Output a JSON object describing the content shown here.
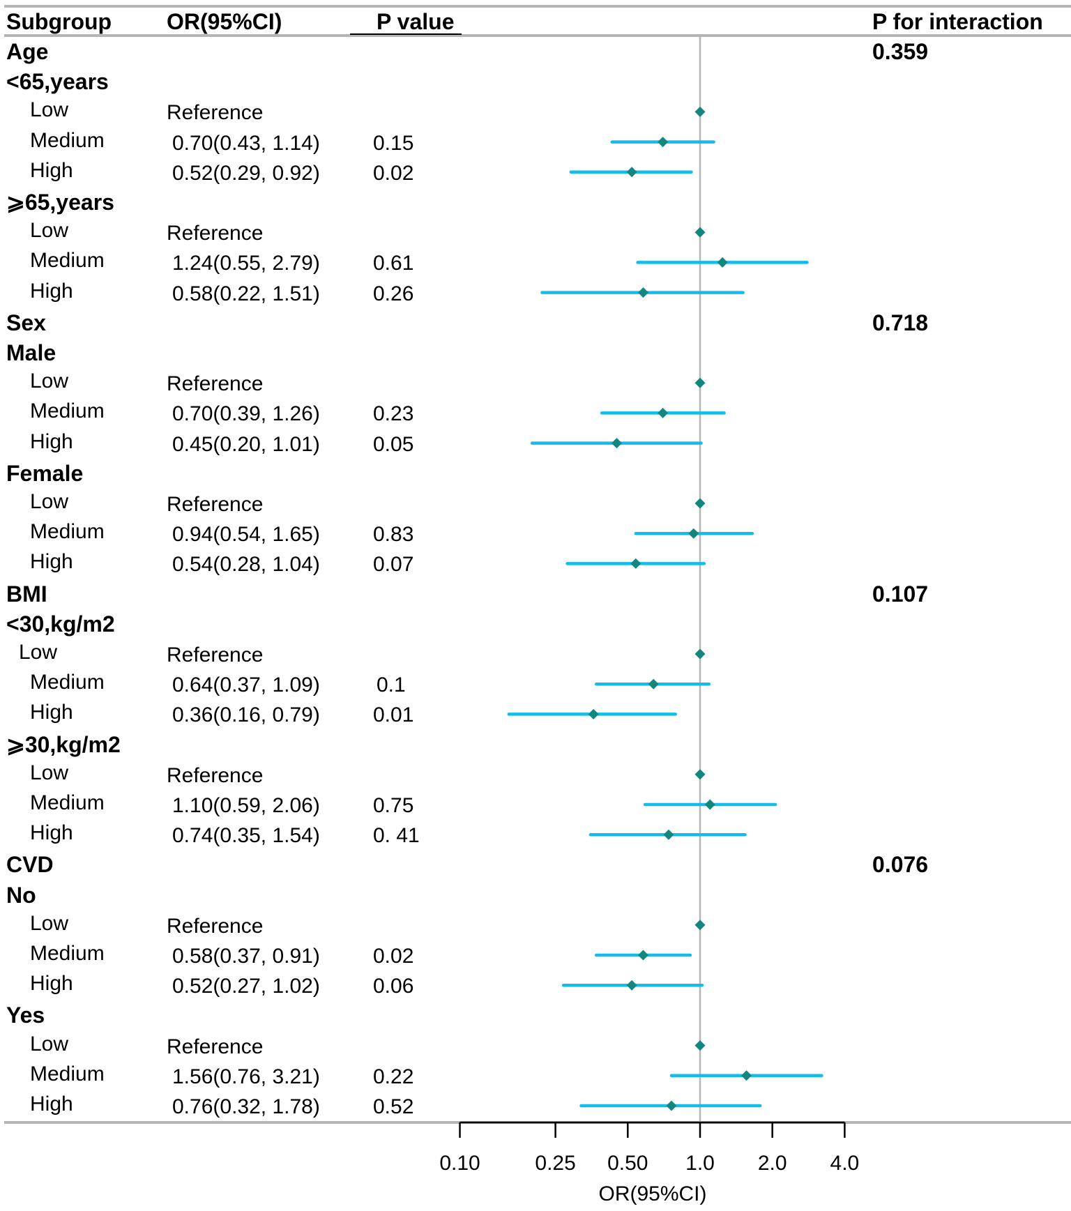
{
  "header": {
    "subgroup": "Subgroup",
    "or": "OR(95%CI)",
    "p": "P value",
    "p_interaction": "P for interaction"
  },
  "chart_data": {
    "type": "forest",
    "xlabel": "OR(95%CI)",
    "xscale": "log",
    "xlim": [
      0.1,
      4.0
    ],
    "ticks": [
      0.1,
      0.25,
      0.5,
      1.0,
      2.0,
      4.0
    ],
    "tick_labels": [
      "0.10",
      "0.25",
      "0.50",
      "1.0",
      "2.0",
      "4.0"
    ],
    "reference_line": 1.0,
    "colors": {
      "ci": "#12bdec",
      "point": "#12877f",
      "ref": "#b5b5b5"
    },
    "rows": [
      {
        "label": "Age",
        "kind": "group",
        "pint": "0.359"
      },
      {
        "label": "<65,years",
        "kind": "sub"
      },
      {
        "label": "Low",
        "kind": "item",
        "or_text": "Reference",
        "or": 1.0
      },
      {
        "label": "Medium",
        "kind": "item",
        "or_text": "0.70(0.43, 1.14)",
        "p": "0.15",
        "or": 0.7,
        "lo": 0.43,
        "hi": 1.14
      },
      {
        "label": "High",
        "kind": "item",
        "or_text": "0.52(0.29, 0.92)",
        "p": "0.02",
        "or": 0.52,
        "lo": 0.29,
        "hi": 0.92
      },
      {
        "label": "⩾65,years",
        "kind": "sub"
      },
      {
        "label": "Low",
        "kind": "item",
        "or_text": "Reference",
        "or": 1.0
      },
      {
        "label": "Medium",
        "kind": "item",
        "or_text": "1.24(0.55, 2.79)",
        "p": "0.61",
        "or": 1.24,
        "lo": 0.55,
        "hi": 2.79
      },
      {
        "label": "High",
        "kind": "item",
        "or_text": "0.58(0.22, 1.51)",
        "p": "0.26",
        "or": 0.58,
        "lo": 0.22,
        "hi": 1.51
      },
      {
        "label": "Sex",
        "kind": "group",
        "pint": "0.718"
      },
      {
        "label": "Male",
        "kind": "sub"
      },
      {
        "label": "Low",
        "kind": "item",
        "or_text": "Reference",
        "or": 1.0
      },
      {
        "label": "Medium",
        "kind": "item",
        "or_text": "0.70(0.39, 1.26)",
        "p": "0.23",
        "or": 0.7,
        "lo": 0.39,
        "hi": 1.26
      },
      {
        "label": "High",
        "kind": "item",
        "or_text": "0.45(0.20, 1.01)",
        "p": "0.05",
        "or": 0.45,
        "lo": 0.2,
        "hi": 1.01
      },
      {
        "label": "Female",
        "kind": "sub"
      },
      {
        "label": "Low",
        "kind": "item",
        "or_text": "Reference",
        "or": 1.0
      },
      {
        "label": "Medium",
        "kind": "item",
        "or_text": "0.94(0.54, 1.65)",
        "p": "0.83",
        "or": 0.94,
        "lo": 0.54,
        "hi": 1.65
      },
      {
        "label": "High",
        "kind": "item",
        "or_text": "0.54(0.28, 1.04)",
        "p": "0.07",
        "or": 0.54,
        "lo": 0.28,
        "hi": 1.04
      },
      {
        "label": "BMI",
        "kind": "group",
        "pint": "0.107"
      },
      {
        "label": "<30,kg/m2",
        "kind": "sub"
      },
      {
        "label": "Low",
        "kind": "item2",
        "or_text": "Reference",
        "or": 1.0
      },
      {
        "label": "Medium",
        "kind": "item",
        "or_text": "0.64(0.37, 1.09)",
        "p": "0.1",
        "or": 0.64,
        "lo": 0.37,
        "hi": 1.09
      },
      {
        "label": "High",
        "kind": "item",
        "or_text": "0.36(0.16, 0.79)",
        "p": "0.01",
        "or": 0.36,
        "lo": 0.16,
        "hi": 0.79
      },
      {
        "label": "⩾30,kg/m2",
        "kind": "sub"
      },
      {
        "label": "Low",
        "kind": "item",
        "or_text": "Reference",
        "or": 1.0
      },
      {
        "label": "Medium",
        "kind": "item",
        "or_text": "1.10(0.59, 2.06)",
        "p": "0.75",
        "or": 1.1,
        "lo": 0.59,
        "hi": 2.06
      },
      {
        "label": "High",
        "kind": "item",
        "or_text": "0.74(0.35, 1.54)",
        "p": "0. 41",
        "or": 0.74,
        "lo": 0.35,
        "hi": 1.54
      },
      {
        "label": "CVD",
        "kind": "group",
        "pint": "0.076"
      },
      {
        "label": "No",
        "kind": "sub"
      },
      {
        "label": "Low",
        "kind": "item",
        "or_text": "Reference",
        "or": 1.0
      },
      {
        "label": "Medium",
        "kind": "item",
        "or_text": "0.58(0.37, 0.91)",
        "p": "0.02",
        "or": 0.58,
        "lo": 0.37,
        "hi": 0.91
      },
      {
        "label": "High",
        "kind": "item",
        "or_text": "0.52(0.27, 1.02)",
        "p": "0.06",
        "or": 0.52,
        "lo": 0.27,
        "hi": 1.02
      },
      {
        "label": "Yes",
        "kind": "sub"
      },
      {
        "label": "Low",
        "kind": "item",
        "or_text": "Reference",
        "or": 1.0
      },
      {
        "label": "Medium",
        "kind": "item",
        "or_text": "1.56(0.76, 3.21)",
        "p": "0.22",
        "or": 1.56,
        "lo": 0.76,
        "hi": 3.21
      },
      {
        "label": "High",
        "kind": "item",
        "or_text": "0.76(0.32, 1.78)",
        "p": "0.52",
        "or": 0.76,
        "lo": 0.32,
        "hi": 1.78
      }
    ]
  }
}
